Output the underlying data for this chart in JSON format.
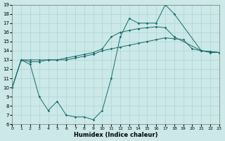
{
  "xlabel": "Humidex (Indice chaleur)",
  "bg_color": "#cce8e8",
  "line_color": "#1a6b6b",
  "grid_color": "#aad4d4",
  "xlim": [
    0,
    23
  ],
  "ylim": [
    6,
    19
  ],
  "xticks": [
    0,
    1,
    2,
    3,
    4,
    5,
    6,
    7,
    8,
    9,
    10,
    11,
    12,
    13,
    14,
    15,
    16,
    17,
    18,
    19,
    20,
    21,
    22,
    23
  ],
  "yticks": [
    6,
    7,
    8,
    9,
    10,
    11,
    12,
    13,
    14,
    15,
    16,
    17,
    18,
    19
  ],
  "line_top_x": [
    0,
    1,
    2,
    3,
    4,
    5,
    6,
    7,
    8,
    9,
    10,
    11,
    12,
    13,
    14,
    15,
    16,
    17,
    18,
    19,
    20,
    21,
    22,
    23
  ],
  "line_top_y": [
    10,
    13,
    13,
    13,
    13,
    13,
    13,
    13.2,
    13.4,
    13.6,
    14,
    14.2,
    14.4,
    14.6,
    14.8,
    15.0,
    15.2,
    15.4,
    15.3,
    15.2,
    14.2,
    14.0,
    13.9,
    13.8
  ],
  "line_mid_x": [
    0,
    1,
    2,
    3,
    4,
    5,
    6,
    7,
    8,
    9,
    10,
    11,
    12,
    13,
    14,
    15,
    16,
    17,
    18,
    21,
    22,
    23
  ],
  "line_mid_y": [
    10,
    13,
    12.8,
    12.8,
    13.0,
    13.0,
    13.2,
    13.4,
    13.6,
    13.8,
    14.2,
    15.5,
    16.0,
    16.2,
    16.4,
    16.5,
    16.6,
    16.5,
    15.5,
    14.0,
    13.9,
    13.8
  ],
  "line_bot_x": [
    0,
    1,
    2,
    3,
    4,
    5,
    6,
    7,
    8,
    9,
    10,
    11,
    12,
    13,
    14,
    15,
    16,
    17,
    18,
    21,
    22,
    23
  ],
  "line_bot_y": [
    10,
    13,
    12.5,
    9,
    7.5,
    8.5,
    7.0,
    6.8,
    6.8,
    6.5,
    7.5,
    11.0,
    15.5,
    17.5,
    17.0,
    17.0,
    17.0,
    19.0,
    18.0,
    14.0,
    13.8,
    13.8
  ]
}
